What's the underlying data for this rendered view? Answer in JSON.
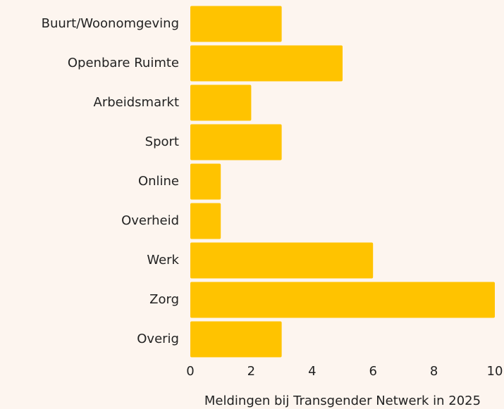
{
  "chart_data": {
    "type": "barh",
    "categories": [
      "Buurt/Woonomgeving",
      "Openbare Ruimte",
      "Arbeidsmarkt",
      "Sport",
      "Online",
      "Overheid",
      "Werk",
      "Zorg",
      "Overig"
    ],
    "values": [
      3,
      5,
      2,
      3,
      1,
      1,
      6,
      10,
      3
    ],
    "color": "#ffc300",
    "xlabel": "Meldingen bij Transgender Netwerk in 2025",
    "xlim": [
      0,
      10
    ],
    "xticks": [
      0,
      2,
      4,
      6,
      8,
      10
    ],
    "grid": false
  }
}
